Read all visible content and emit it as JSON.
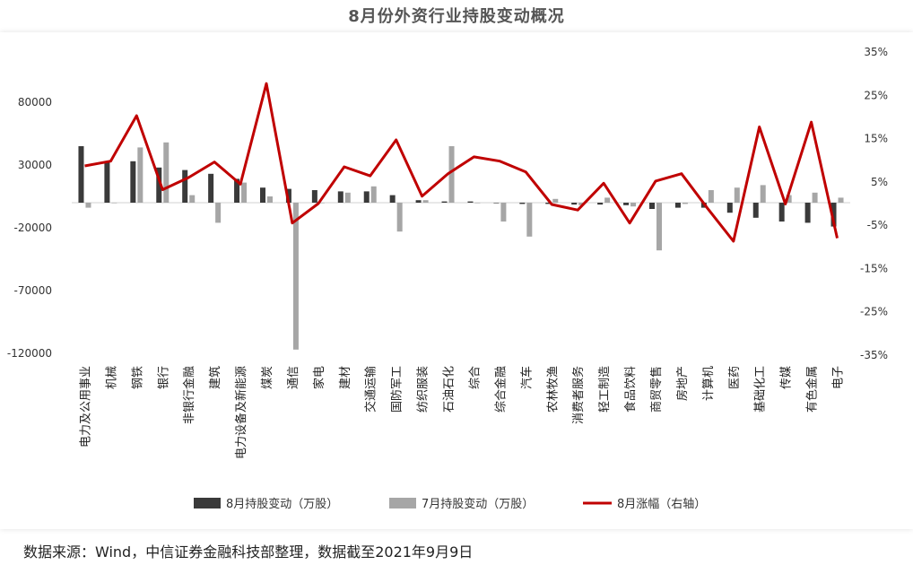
{
  "chart_data": {
    "type": "bar+line",
    "title": "8月份外资行业持股变动概况",
    "categories": [
      "电力及公用事业",
      "机械",
      "钢铁",
      "银行",
      "非银行金融",
      "建筑",
      "电力设备及新能源",
      "煤炭",
      "通信",
      "家电",
      "建材",
      "交通运输",
      "国防军工",
      "纺织服装",
      "石油石化",
      "综合",
      "综合金融",
      "汽车",
      "农林牧渔",
      "消费者服务",
      "轻工制造",
      "食品饮料",
      "商贸零售",
      "房地产",
      "计算机",
      "医药",
      "基础化工",
      "传媒",
      "有色金属",
      "电子"
    ],
    "series": [
      {
        "name": "8月持股变动（万股）",
        "axis": "left",
        "color": "#3a3a3a",
        "values": [
          45000,
          33000,
          33000,
          28000,
          26000,
          23000,
          19000,
          12000,
          11000,
          10000,
          9000,
          9000,
          6000,
          2000,
          1000,
          1000,
          0,
          -1000,
          -1000,
          -1500,
          -1500,
          -2000,
          -5000,
          -4000,
          -4000,
          -8000,
          -12000,
          -15000,
          -16000,
          -19000
        ]
      },
      {
        "name": "7月持股变动（万股）",
        "axis": "left",
        "color": "#a6a6a6",
        "values": [
          -4000,
          0,
          44000,
          48000,
          6000,
          -16000,
          16000,
          5000,
          -117000,
          0,
          8000,
          13000,
          -23000,
          2000,
          45000,
          0,
          -15000,
          -27000,
          3000,
          -2000,
          4000,
          -3000,
          -38000,
          -1000,
          10000,
          12000,
          14000,
          6000,
          8000,
          4000
        ]
      },
      {
        "name": "8月涨幅（右轴）",
        "axis": "right",
        "color": "#c00000",
        "values": [
          8.7,
          9.8,
          20.3,
          3.2,
          6.0,
          9.6,
          4.5,
          27.7,
          -4.5,
          0.0,
          8.5,
          6.4,
          14.7,
          1.7,
          6.9,
          10.8,
          9.8,
          7.3,
          -0.2,
          -1.5,
          4.7,
          -4.5,
          5.2,
          6.9,
          -1.1,
          -8.7,
          17.7,
          -0.1,
          18.8,
          -8.0
        ]
      }
    ],
    "left_axis": {
      "ticks": [
        "-120000",
        "-70000",
        "-20000",
        "30000",
        "80000"
      ],
      "min": -120000,
      "max": 80000
    },
    "right_axis": {
      "ticks": [
        "-35%",
        "-25%",
        "-15%",
        "-5%",
        "5%",
        "15%",
        "25%",
        "35%"
      ],
      "min": -35,
      "max": 35
    },
    "legend_position": "bottom",
    "grid": false
  },
  "source_note": "数据来源：Wind，中信证券金融科技部整理，数据截至2021年9月9日"
}
